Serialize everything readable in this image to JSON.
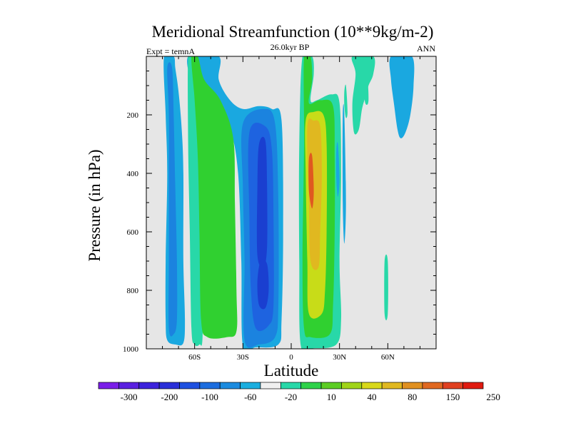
{
  "chart_data": {
    "type": "contour",
    "title": "Meridional Streamfunction (10**9kg/m-2)",
    "subtitle": "26.0kyr BP",
    "left_annotation": "Expt = temnA",
    "right_annotation": "ANN",
    "xlabel": "Latitude",
    "ylabel": "Pressure (in hPa)",
    "xlim": [
      -90,
      90
    ],
    "ylim": [
      1000,
      0
    ],
    "x_ticks": [
      {
        "value": -60,
        "label": "60S"
      },
      {
        "value": -30,
        "label": "30S"
      },
      {
        "value": 0,
        "label": "0"
      },
      {
        "value": 30,
        "label": "30N"
      },
      {
        "value": 60,
        "label": "60N"
      }
    ],
    "y_ticks": [
      {
        "value": 200,
        "label": "200"
      },
      {
        "value": 400,
        "label": "400"
      },
      {
        "value": 600,
        "label": "600"
      },
      {
        "value": 800,
        "label": "800"
      },
      {
        "value": 1000,
        "label": "1000"
      }
    ],
    "background_color": "#e6e6e6",
    "cells": [
      {
        "level": -20,
        "color": "#1aa8e0",
        "points": [
          [
            -79,
            0
          ],
          [
            -73,
            0
          ],
          [
            -72,
            40
          ],
          [
            -70,
            120
          ],
          [
            -68,
            250
          ],
          [
            -67,
            400
          ],
          [
            -67,
            700
          ],
          [
            -66,
            900
          ],
          [
            -67,
            980
          ],
          [
            -72,
            985
          ],
          [
            -77,
            970
          ],
          [
            -78,
            900
          ],
          [
            -78,
            700
          ],
          [
            -77,
            400
          ],
          [
            -78,
            200
          ]
        ]
      },
      {
        "level": -60,
        "color": "#1b83df",
        "points": [
          [
            -77,
            40
          ],
          [
            -74,
            40
          ],
          [
            -73,
            200
          ],
          [
            -72,
            450
          ],
          [
            -71,
            700
          ],
          [
            -71,
            900
          ],
          [
            -73,
            950
          ],
          [
            -76,
            930
          ],
          [
            -76,
            700
          ],
          [
            -76,
            450
          ],
          [
            -76,
            200
          ]
        ]
      },
      {
        "level": -20,
        "color": "#1aa8e0",
        "points": [
          [
            -64,
            0
          ],
          [
            -45,
            0
          ],
          [
            -45,
            80
          ],
          [
            -38,
            150
          ],
          [
            -30,
            180
          ],
          [
            -20,
            170
          ],
          [
            -12,
            180
          ],
          [
            -6,
            220
          ],
          [
            -5,
            600
          ],
          [
            -6,
            900
          ],
          [
            -8,
            985
          ],
          [
            -22,
            995
          ],
          [
            -30,
            990
          ],
          [
            -31,
            700
          ],
          [
            -33,
            400
          ],
          [
            -38,
            250
          ],
          [
            -48,
            180
          ],
          [
            -55,
            150
          ],
          [
            -60,
            120
          ]
        ]
      },
      {
        "level": 10,
        "color": "#28d8a8",
        "points": [
          [
            -64,
            0
          ],
          [
            -61,
            0
          ],
          [
            -58,
            100
          ],
          [
            -56,
            300
          ],
          [
            -55,
            600
          ],
          [
            -55,
            950
          ],
          [
            -57,
            985
          ],
          [
            -60,
            985
          ],
          [
            -62,
            930
          ],
          [
            -63,
            600
          ],
          [
            -64,
            300
          ]
        ]
      },
      {
        "level": 40,
        "color": "#30d030",
        "points": [
          [
            -62,
            0
          ],
          [
            -58,
            0
          ],
          [
            -54,
            80
          ],
          [
            -44,
            150
          ],
          [
            -36,
            280
          ],
          [
            -35,
            500
          ],
          [
            -34,
            800
          ],
          [
            -34,
            940
          ],
          [
            -40,
            960
          ],
          [
            -52,
            960
          ],
          [
            -56,
            900
          ],
          [
            -57,
            600
          ],
          [
            -58,
            350
          ],
          [
            -60,
            150
          ]
        ]
      },
      {
        "level": -60,
        "color": "#1b83df",
        "points": [
          [
            -30,
            230
          ],
          [
            -17,
            180
          ],
          [
            -10,
            230
          ],
          [
            -8,
            500
          ],
          [
            -8,
            850
          ],
          [
            -10,
            960
          ],
          [
            -20,
            985
          ],
          [
            -29,
            970
          ],
          [
            -29,
            700
          ],
          [
            -30,
            450
          ]
        ]
      },
      {
        "level": -100,
        "color": "#1e63e0",
        "points": [
          [
            -26,
            260
          ],
          [
            -16,
            240
          ],
          [
            -12,
            320
          ],
          [
            -11,
            550
          ],
          [
            -11,
            850
          ],
          [
            -14,
            920
          ],
          [
            -22,
            930
          ],
          [
            -25,
            800
          ],
          [
            -26,
            550
          ]
        ]
      },
      {
        "level": -200,
        "color": "#1a3fd0",
        "points": [
          [
            -20,
            300
          ],
          [
            -16,
            290
          ],
          [
            -15,
            450
          ],
          [
            -15,
            650
          ],
          [
            -17,
            720
          ],
          [
            -21,
            680
          ],
          [
            -21,
            450
          ]
        ]
      },
      {
        "level": -200,
        "color": "#1a3fd0",
        "points": [
          [
            -19,
            700
          ],
          [
            -15,
            710
          ],
          [
            -14,
            800
          ],
          [
            -16,
            860
          ],
          [
            -20,
            850
          ],
          [
            -21,
            770
          ]
        ]
      },
      {
        "level": 10,
        "color": "#28d8a8",
        "points": [
          [
            7,
            0
          ],
          [
            13,
            0
          ],
          [
            14,
            60
          ],
          [
            12,
            150
          ],
          [
            16,
            150
          ],
          [
            25,
            130
          ],
          [
            30,
            160
          ],
          [
            31,
            400
          ],
          [
            30,
            700
          ],
          [
            31,
            900
          ],
          [
            28,
            985
          ],
          [
            14,
            998
          ],
          [
            6,
            990
          ],
          [
            5,
            700
          ],
          [
            5,
            300
          ]
        ]
      },
      {
        "level": 10,
        "color": "#28d8a8",
        "points": [
          [
            38,
            0
          ],
          [
            51,
            0
          ],
          [
            51,
            60
          ],
          [
            48,
            100
          ],
          [
            46,
            140
          ],
          [
            44,
            180
          ],
          [
            42,
            250
          ],
          [
            39,
            260
          ],
          [
            38,
            160
          ],
          [
            40,
            60
          ]
        ]
      },
      {
        "level": 10,
        "color": "#28d8a8",
        "points": [
          [
            33,
            120
          ],
          [
            34,
            100
          ],
          [
            35,
            190
          ],
          [
            34,
            210
          ],
          [
            33,
            170
          ]
        ]
      },
      {
        "level": 10,
        "color": "#28d8a8",
        "points": [
          [
            45,
            50
          ],
          [
            47,
            40
          ],
          [
            48,
            150
          ],
          [
            46,
            160
          ],
          [
            45,
            100
          ]
        ]
      },
      {
        "level": 10,
        "color": "#28d8a8",
        "points": [
          [
            58,
            700
          ],
          [
            60,
            700
          ],
          [
            60,
            880
          ],
          [
            58,
            880
          ]
        ]
      },
      {
        "level": -20,
        "color": "#1aa8e0",
        "points": [
          [
            32,
            200
          ],
          [
            33,
            200
          ],
          [
            34,
            500
          ],
          [
            33,
            640
          ],
          [
            32,
            500
          ]
        ]
      },
      {
        "level": -20,
        "color": "#1aa8e0",
        "points": [
          [
            28,
            320
          ],
          [
            29,
            300
          ],
          [
            30,
            420
          ],
          [
            29,
            480
          ],
          [
            28,
            420
          ]
        ]
      },
      {
        "level": -20,
        "color": "#1aa8e0",
        "points": [
          [
            62,
            0
          ],
          [
            75,
            0
          ],
          [
            76,
            100
          ],
          [
            74,
            200
          ],
          [
            71,
            260
          ],
          [
            68,
            280
          ],
          [
            66,
            250
          ],
          [
            64,
            170
          ],
          [
            62,
            80
          ]
        ]
      },
      {
        "level": 40,
        "color": "#30d030",
        "points": [
          [
            8,
            0
          ],
          [
            12,
            0
          ],
          [
            13,
            80
          ],
          [
            11,
            160
          ],
          [
            18,
            150
          ],
          [
            26,
            170
          ],
          [
            27,
            350
          ],
          [
            27,
            600
          ],
          [
            26,
            850
          ],
          [
            24,
            950
          ],
          [
            12,
            960
          ],
          [
            8,
            930
          ],
          [
            7,
            700
          ],
          [
            8,
            300
          ]
        ]
      },
      {
        "level": 80,
        "color": "#c8dc18",
        "points": [
          [
            9,
            220
          ],
          [
            14,
            190
          ],
          [
            20,
            200
          ],
          [
            22,
            300
          ],
          [
            22,
            600
          ],
          [
            21,
            800
          ],
          [
            19,
            880
          ],
          [
            11,
            880
          ],
          [
            10,
            700
          ],
          [
            9,
            400
          ]
        ]
      },
      {
        "level": 150,
        "color": "#e0b820",
        "points": [
          [
            10,
            240
          ],
          [
            14,
            220
          ],
          [
            18,
            240
          ],
          [
            19,
            400
          ],
          [
            18,
            600
          ],
          [
            17,
            720
          ],
          [
            12,
            700
          ],
          [
            11,
            500
          ]
        ]
      },
      {
        "level": 250,
        "color": "#e05820",
        "points": [
          [
            11,
            350
          ],
          [
            13,
            340
          ],
          [
            14,
            460
          ],
          [
            13,
            520
          ],
          [
            11,
            460
          ]
        ]
      }
    ],
    "colorbar": {
      "colors": [
        "#7a1ee8",
        "#5a20e0",
        "#3c22dc",
        "#2a2fd8",
        "#1e50e0",
        "#1c6ddf",
        "#1b8bdf",
        "#1aaedf",
        "#f0f0f0",
        "#28d8a8",
        "#2ed24a",
        "#5ccd23",
        "#a0d418",
        "#d8d81a",
        "#e0b820",
        "#e09020",
        "#e06820",
        "#e04020",
        "#e01a10"
      ],
      "labels": [
        "-300",
        "-200",
        "-100",
        "-60",
        "-20",
        "10",
        "40",
        "80",
        "150",
        "250"
      ]
    }
  }
}
